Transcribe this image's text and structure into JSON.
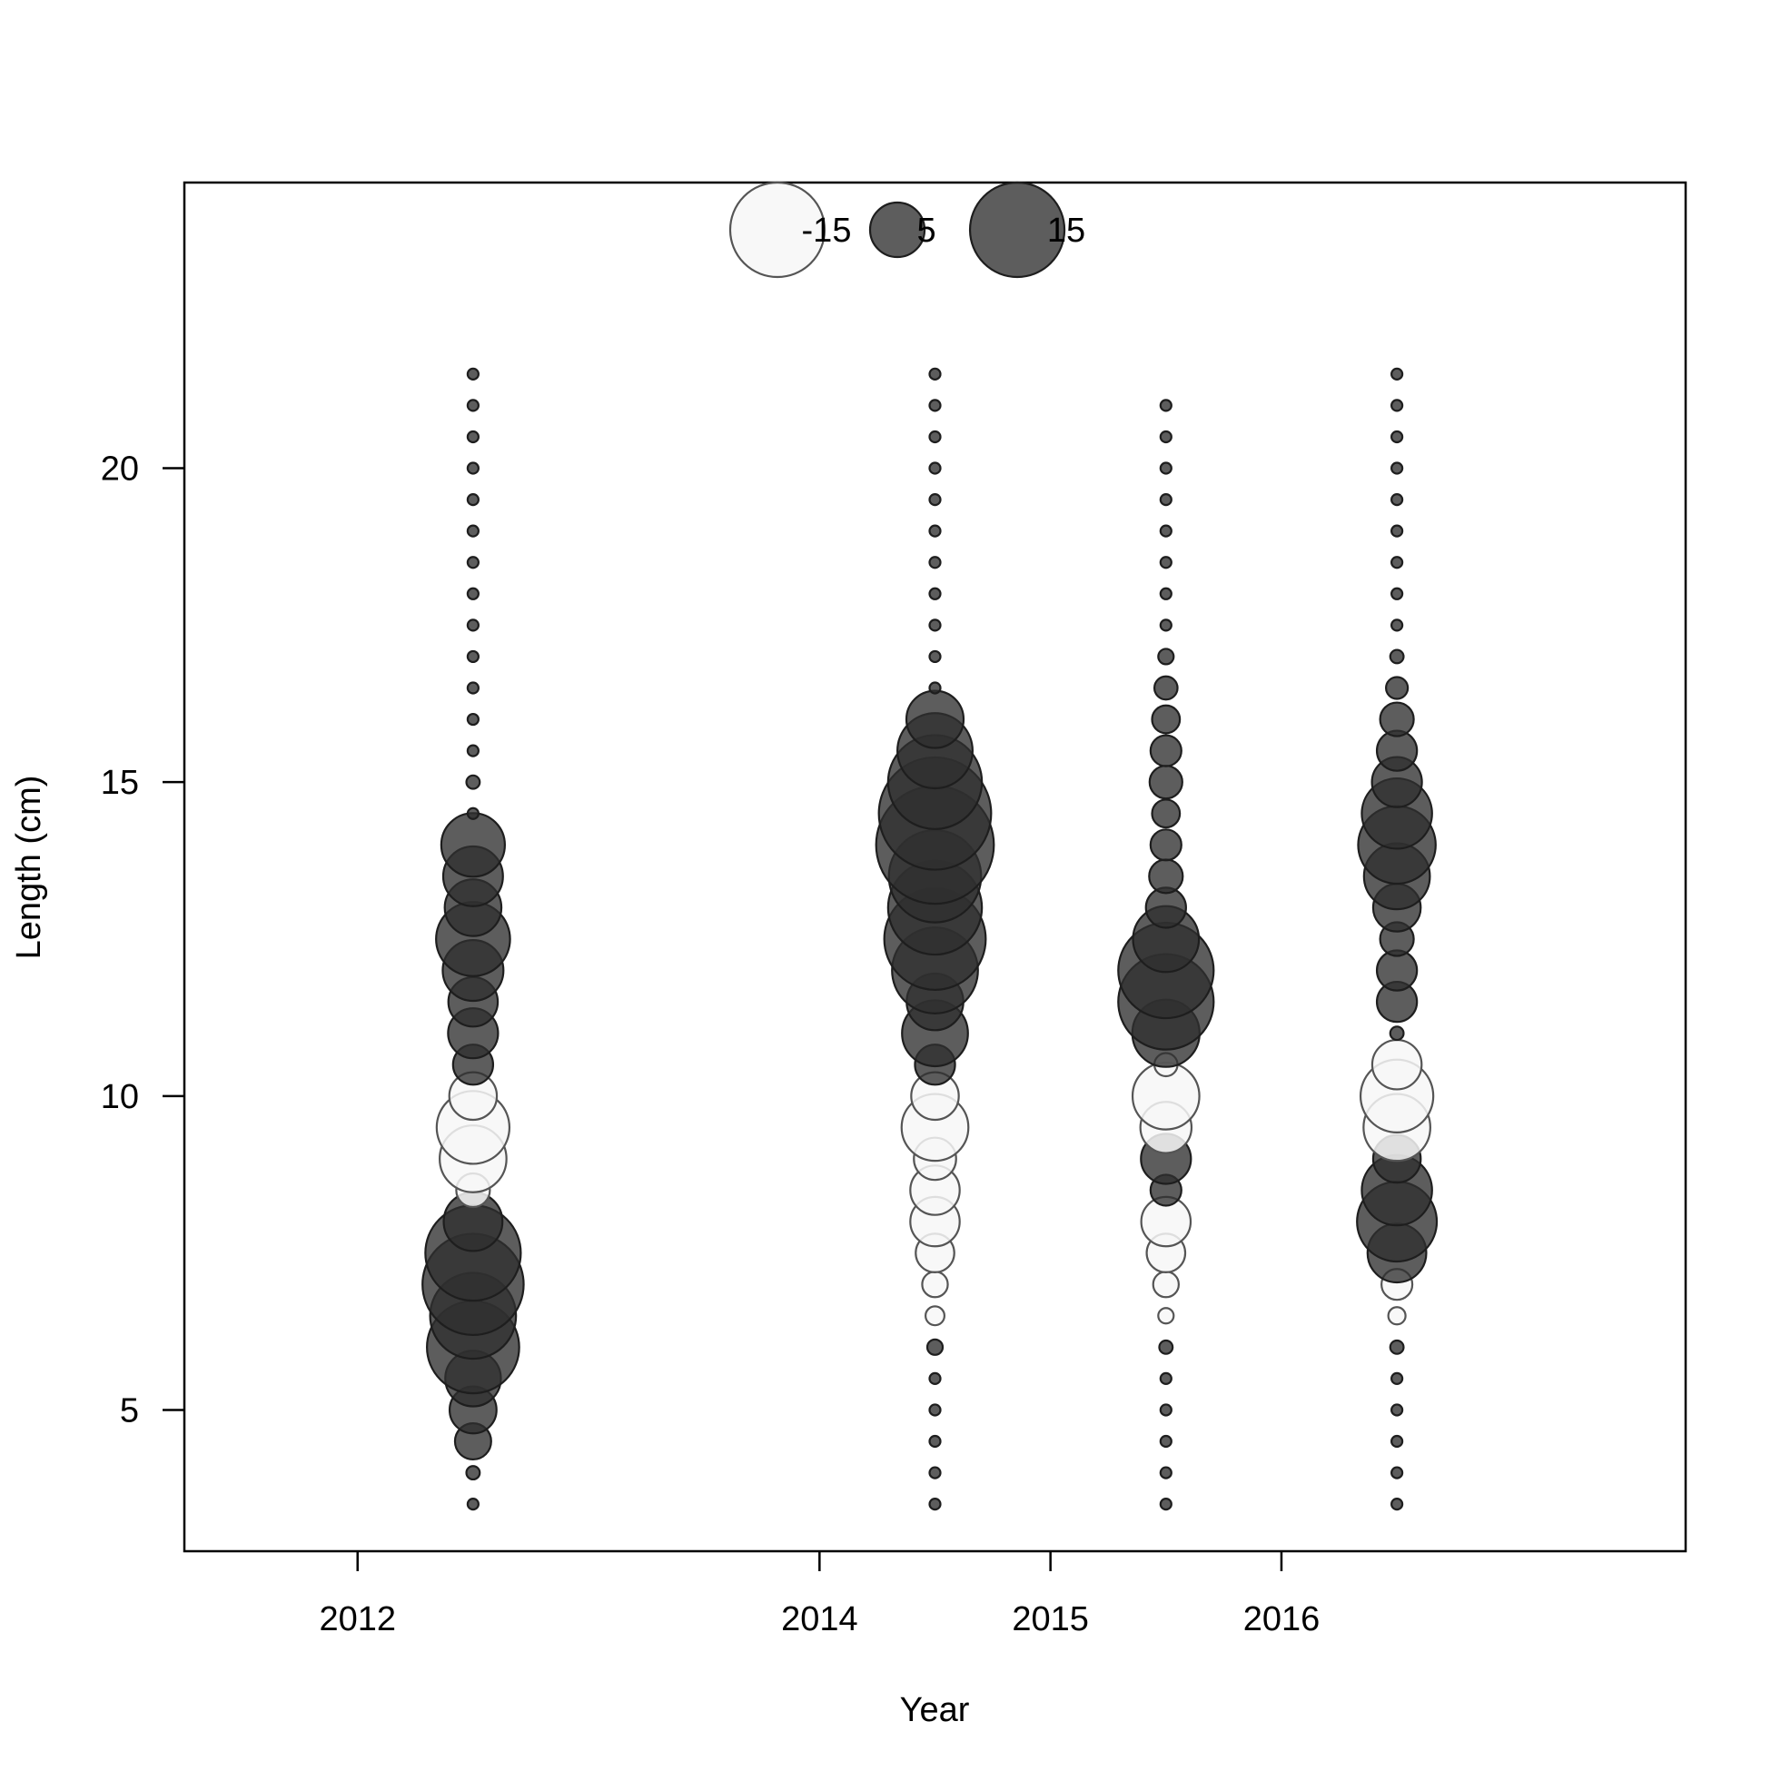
{
  "chart_data": {
    "type": "scatter",
    "subtype": "bubble",
    "xlabel": "Year",
    "ylabel": "Length (cm)",
    "xlim": [
      2011.25,
      2017.75
    ],
    "ylim": [
      2.75,
      24.55
    ],
    "x_ticks": [
      {
        "value": 2012,
        "label": "2012"
      },
      {
        "value": 2014,
        "label": "2014"
      },
      {
        "value": 2015,
        "label": "2015"
      },
      {
        "value": 2016,
        "label": "2016"
      }
    ],
    "y_ticks": [
      {
        "value": 5,
        "label": "5"
      },
      {
        "value": 10,
        "label": "10"
      },
      {
        "value": 15,
        "label": "15"
      },
      {
        "value": 20,
        "label": "20"
      }
    ],
    "size_legend": {
      "placement": "top-center",
      "entries": [
        {
          "value": -15,
          "label": "-15"
        },
        {
          "value": 5,
          "label": "5"
        },
        {
          "value": 15,
          "label": "15"
        }
      ]
    },
    "colors": {
      "positive_fill": "#303030",
      "positive_stroke": "#1e1e1e",
      "negative_fill": "#f7f7f7",
      "negative_stroke": "#555555",
      "axis": "#000000"
    },
    "series": [
      {
        "x": 2012.5,
        "points": [
          {
            "y": 3.5,
            "v": 0.2
          },
          {
            "y": 4,
            "v": 0.3
          },
          {
            "y": 4.5,
            "v": 2.2
          },
          {
            "y": 5,
            "v": 3.7
          },
          {
            "y": 5.5,
            "v": 5.2
          },
          {
            "y": 6,
            "v": 14.3
          },
          {
            "y": 6.5,
            "v": 12.4
          },
          {
            "y": 7,
            "v": 17.2
          },
          {
            "y": 7.5,
            "v": 15.3
          },
          {
            "y": 8,
            "v": 5.8
          },
          {
            "y": 8.5,
            "v": -1.9
          },
          {
            "y": 9,
            "v": -7.5
          },
          {
            "y": 9.5,
            "v": -8.9
          },
          {
            "y": 10,
            "v": -3.8
          },
          {
            "y": 10.5,
            "v": 2.7
          },
          {
            "y": 11,
            "v": 4.2
          },
          {
            "y": 11.5,
            "v": 4.1
          },
          {
            "y": 12,
            "v": 6.2
          },
          {
            "y": 12.5,
            "v": 9.2
          },
          {
            "y": 13,
            "v": 5.4
          },
          {
            "y": 13.5,
            "v": 6.0
          },
          {
            "y": 14,
            "v": 6.8
          },
          {
            "y": 14.5,
            "v": 0.2
          },
          {
            "y": 15,
            "v": 0.3
          },
          {
            "y": 15.5,
            "v": 0.2
          },
          {
            "y": 16,
            "v": 0.2
          },
          {
            "y": 16.5,
            "v": 0.2
          },
          {
            "y": 17,
            "v": 0.2
          },
          {
            "y": 17.5,
            "v": 0.2
          },
          {
            "y": 18,
            "v": 0.2
          },
          {
            "y": 18.5,
            "v": 0.2
          },
          {
            "y": 19,
            "v": 0.2
          },
          {
            "y": 19.5,
            "v": 0.2
          },
          {
            "y": 20,
            "v": 0.2
          },
          {
            "y": 20.5,
            "v": 0.2
          },
          {
            "y": 21,
            "v": 0.2
          },
          {
            "y": 21.5,
            "v": 0.2
          }
        ]
      },
      {
        "x": 2014.5,
        "points": [
          {
            "y": 3.5,
            "v": 0.2
          },
          {
            "y": 4,
            "v": 0.2
          },
          {
            "y": 4.5,
            "v": 0.2
          },
          {
            "y": 5,
            "v": 0.2
          },
          {
            "y": 5.5,
            "v": 0.2
          },
          {
            "y": 6,
            "v": 0.4
          },
          {
            "y": 6.5,
            "v": -0.6
          },
          {
            "y": 7,
            "v": -1.1
          },
          {
            "y": 7.5,
            "v": -2.5
          },
          {
            "y": 8,
            "v": -4.1
          },
          {
            "y": 8.5,
            "v": -4.1
          },
          {
            "y": 9,
            "v": -3.0
          },
          {
            "y": 9.5,
            "v": -7.5
          },
          {
            "y": 10,
            "v": -3.8
          },
          {
            "y": 10.5,
            "v": 2.7
          },
          {
            "y": 11,
            "v": 7.3
          },
          {
            "y": 11.5,
            "v": 5.4
          },
          {
            "y": 12,
            "v": 12.4
          },
          {
            "y": 12.5,
            "v": 17.3
          },
          {
            "y": 13,
            "v": 14.8
          },
          {
            "y": 13.5,
            "v": 14.3
          },
          {
            "y": 14,
            "v": 23.3
          },
          {
            "y": 14.5,
            "v": 21.2
          },
          {
            "y": 15,
            "v": 14.8
          },
          {
            "y": 15.5,
            "v": 9.5
          },
          {
            "y": 16,
            "v": 5.5
          },
          {
            "y": 16.5,
            "v": 0.2
          },
          {
            "y": 17,
            "v": 0.2
          },
          {
            "y": 17.5,
            "v": 0.2
          },
          {
            "y": 18,
            "v": 0.2
          },
          {
            "y": 18.5,
            "v": 0.2
          },
          {
            "y": 19,
            "v": 0.2
          },
          {
            "y": 19.5,
            "v": 0.2
          },
          {
            "y": 20,
            "v": 0.2
          },
          {
            "y": 20.5,
            "v": 0.2
          },
          {
            "y": 21,
            "v": 0.2
          },
          {
            "y": 21.5,
            "v": 0.2
          }
        ]
      },
      {
        "x": 2015.5,
        "points": [
          {
            "y": 3.5,
            "v": 0.2
          },
          {
            "y": 4,
            "v": 0.2
          },
          {
            "y": 4.5,
            "v": 0.2
          },
          {
            "y": 5,
            "v": 0.2
          },
          {
            "y": 5.5,
            "v": 0.2
          },
          {
            "y": 6,
            "v": 0.3
          },
          {
            "y": 6.5,
            "v": -0.4
          },
          {
            "y": 7,
            "v": -1.1
          },
          {
            "y": 7.5,
            "v": -2.5
          },
          {
            "y": 8,
            "v": -4.1
          },
          {
            "y": 8.5,
            "v": 1.6
          },
          {
            "y": 9,
            "v": 4.2
          },
          {
            "y": 9.5,
            "v": -4.4
          },
          {
            "y": 10,
            "v": -7.5
          },
          {
            "y": 10.5,
            "v": -0.9
          },
          {
            "y": 11,
            "v": 7.6
          },
          {
            "y": 11.5,
            "v": 15.3
          },
          {
            "y": 12,
            "v": 15.3
          },
          {
            "y": 12.5,
            "v": 7.3
          },
          {
            "y": 13,
            "v": 2.7
          },
          {
            "y": 13.5,
            "v": 1.9
          },
          {
            "y": 14,
            "v": 1.6
          },
          {
            "y": 14.5,
            "v": 1.3
          },
          {
            "y": 15,
            "v": 1.8
          },
          {
            "y": 15.5,
            "v": 1.6
          },
          {
            "y": 16,
            "v": 1.3
          },
          {
            "y": 16.5,
            "v": 0.9
          },
          {
            "y": 17,
            "v": 0.4
          },
          {
            "y": 17.5,
            "v": 0.2
          },
          {
            "y": 18,
            "v": 0.2
          },
          {
            "y": 18.5,
            "v": 0.2
          },
          {
            "y": 19,
            "v": 0.2
          },
          {
            "y": 19.5,
            "v": 0.2
          },
          {
            "y": 20,
            "v": 0.2
          },
          {
            "y": 20.5,
            "v": 0.2
          },
          {
            "y": 21,
            "v": 0.2
          }
        ]
      },
      {
        "x": 2016.5,
        "points": [
          {
            "y": 3.5,
            "v": 0.2
          },
          {
            "y": 4,
            "v": 0.2
          },
          {
            "y": 4.5,
            "v": 0.2
          },
          {
            "y": 5,
            "v": 0.2
          },
          {
            "y": 5.5,
            "v": 0.2
          },
          {
            "y": 6,
            "v": 0.3
          },
          {
            "y": 6.5,
            "v": -0.5
          },
          {
            "y": 7,
            "v": -1.6
          },
          {
            "y": 7.5,
            "v": 5.8
          },
          {
            "y": 8,
            "v": 10.7
          },
          {
            "y": 8.5,
            "v": 8.3
          },
          {
            "y": 9,
            "v": 3.8
          },
          {
            "y": 9.5,
            "v": -7.5
          },
          {
            "y": 10,
            "v": -8.9
          },
          {
            "y": 10.5,
            "v": -4.1
          },
          {
            "y": 11,
            "v": 0.3
          },
          {
            "y": 11.5,
            "v": 2.7
          },
          {
            "y": 12,
            "v": 2.7
          },
          {
            "y": 12.5,
            "v": 1.9
          },
          {
            "y": 13,
            "v": 3.8
          },
          {
            "y": 13.5,
            "v": 7.3
          },
          {
            "y": 14,
            "v": 10.1
          },
          {
            "y": 14.5,
            "v": 8.3
          },
          {
            "y": 15,
            "v": 4.2
          },
          {
            "y": 15.5,
            "v": 2.7
          },
          {
            "y": 16,
            "v": 1.9
          },
          {
            "y": 16.5,
            "v": 0.8
          },
          {
            "y": 17,
            "v": 0.3
          },
          {
            "y": 17.5,
            "v": 0.2
          },
          {
            "y": 18,
            "v": 0.2
          },
          {
            "y": 18.5,
            "v": 0.2
          },
          {
            "y": 19,
            "v": 0.2
          },
          {
            "y": 19.5,
            "v": 0.2
          },
          {
            "y": 20,
            "v": 0.2
          },
          {
            "y": 20.5,
            "v": 0.2
          },
          {
            "y": 21,
            "v": 0.2
          },
          {
            "y": 21.5,
            "v": 0.2
          }
        ]
      }
    ]
  }
}
